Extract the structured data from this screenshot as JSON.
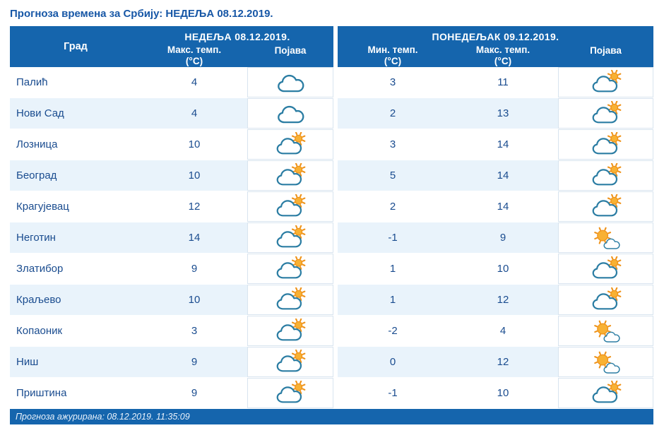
{
  "page": {
    "title": "Прогноза времена за Србију: НЕДЕЉА  08.12.2019."
  },
  "table": {
    "groups": [
      {
        "label": "НЕДЕЉА  08.12.2019."
      },
      {
        "label": "ПОНЕДЕЉАК  09.12.2019."
      }
    ],
    "columns": {
      "city": {
        "label": "Град"
      },
      "sun_max": {
        "label": "Макс. темп.",
        "unit": "(°C)"
      },
      "sun_phen": {
        "label": "Појава"
      },
      "mon_min": {
        "label": "Мин. темп.",
        "unit": "(°C)"
      },
      "mon_max": {
        "label": "Макс. темп.",
        "unit": "(°C)"
      },
      "mon_phen": {
        "label": "Појава"
      }
    },
    "rows": [
      {
        "city": "Палић",
        "sun_max": "4",
        "sun_icon": "cloudy",
        "mon_min": "3",
        "mon_max": "11",
        "mon_icon": "partly-cloudy"
      },
      {
        "city": "Нови Сад",
        "sun_max": "4",
        "sun_icon": "cloudy",
        "mon_min": "2",
        "mon_max": "13",
        "mon_icon": "partly-cloudy"
      },
      {
        "city": "Лозница",
        "sun_max": "10",
        "sun_icon": "partly-cloudy",
        "mon_min": "3",
        "mon_max": "14",
        "mon_icon": "partly-cloudy"
      },
      {
        "city": "Београд",
        "sun_max": "10",
        "sun_icon": "partly-cloudy",
        "mon_min": "5",
        "mon_max": "14",
        "mon_icon": "partly-cloudy"
      },
      {
        "city": "Крагујевац",
        "sun_max": "12",
        "sun_icon": "partly-cloudy",
        "mon_min": "2",
        "mon_max": "14",
        "mon_icon": "partly-cloudy"
      },
      {
        "city": "Неготин",
        "sun_max": "14",
        "sun_icon": "partly-cloudy",
        "mon_min": "-1",
        "mon_max": "9",
        "mon_icon": "mostly-sunny"
      },
      {
        "city": "Златибор",
        "sun_max": "9",
        "sun_icon": "partly-cloudy",
        "mon_min": "1",
        "mon_max": "10",
        "mon_icon": "partly-cloudy"
      },
      {
        "city": "Краљево",
        "sun_max": "10",
        "sun_icon": "partly-cloudy",
        "mon_min": "1",
        "mon_max": "12",
        "mon_icon": "partly-cloudy"
      },
      {
        "city": "Копаоник",
        "sun_max": "3",
        "sun_icon": "partly-cloudy",
        "mon_min": "-2",
        "mon_max": "4",
        "mon_icon": "mostly-sunny"
      },
      {
        "city": "Ниш",
        "sun_max": "9",
        "sun_icon": "partly-cloudy",
        "mon_min": "0",
        "mon_max": "12",
        "mon_icon": "mostly-sunny"
      },
      {
        "city": "Приштина",
        "sun_max": "9",
        "sun_icon": "partly-cloudy",
        "mon_min": "-1",
        "mon_max": "10",
        "mon_icon": "partly-cloudy"
      }
    ]
  },
  "footer": {
    "updated": "Прогноза ажурирана:  08.12.2019. 11:35:09"
  },
  "colors": {
    "header_bg": "#1565ad",
    "row_alt_bg": "#e9f3fb",
    "text_blue": "#1a4c8f",
    "sun_fill": "#f8b133",
    "sun_stroke": "#ef941c",
    "cloud_stroke": "#2b7da3",
    "icon_border": "#d8e4ef"
  }
}
